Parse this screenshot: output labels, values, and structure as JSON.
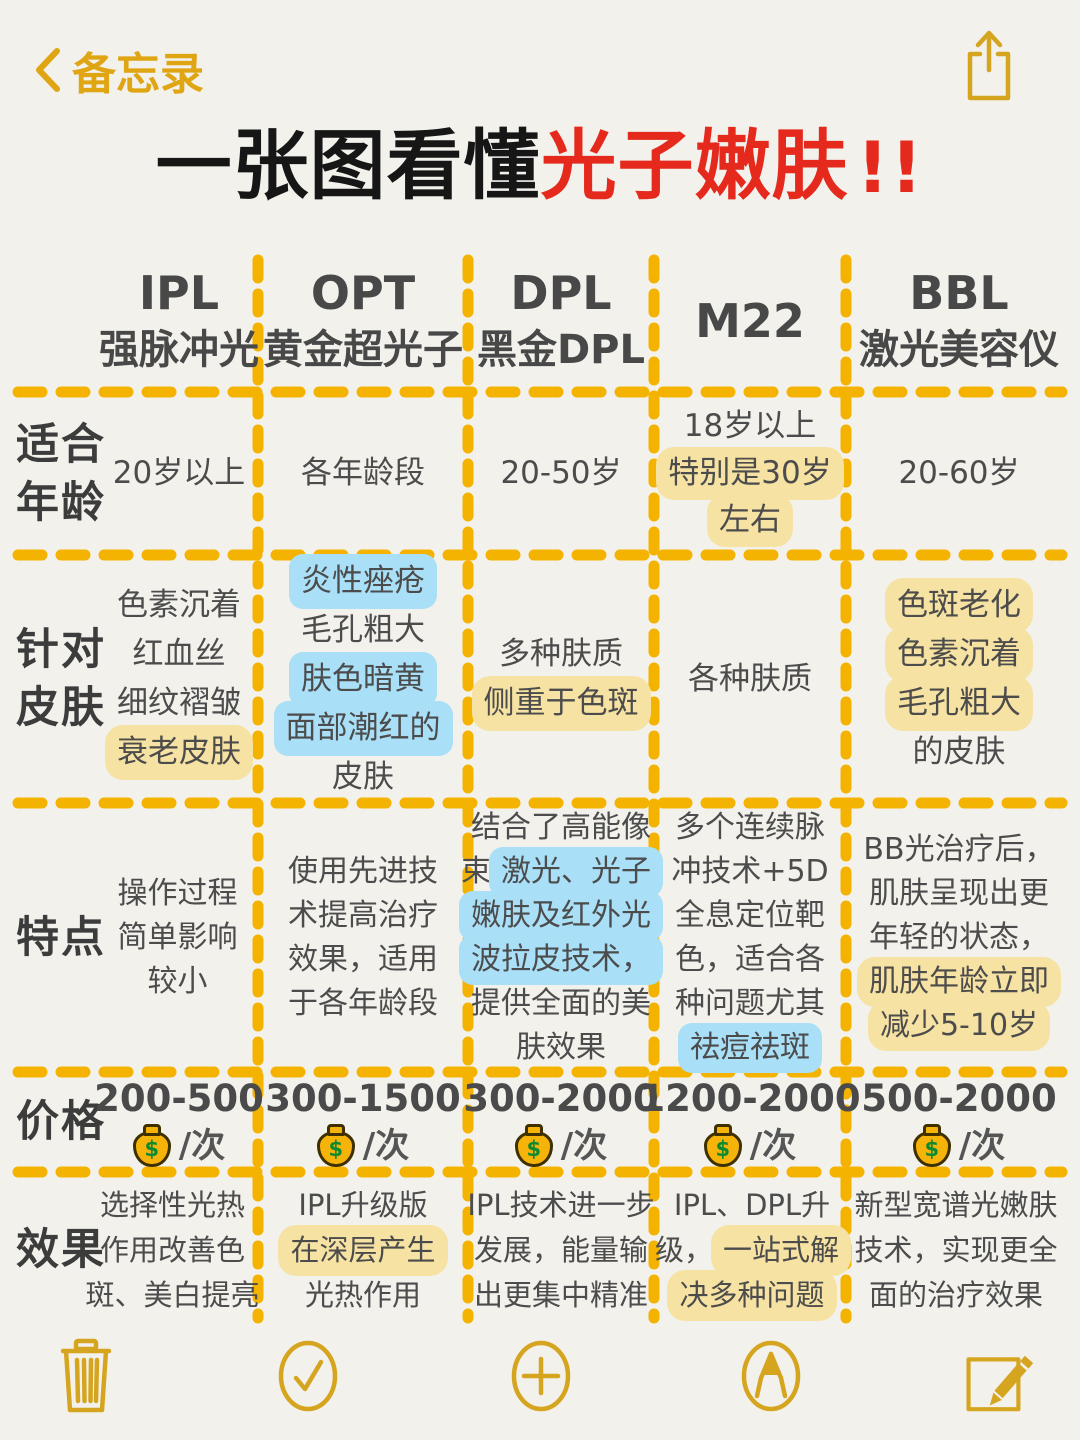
{
  "nav": {
    "back_label": "备忘录"
  },
  "title": {
    "prefix": "一张图看懂",
    "highlight": "光子嫩肤",
    "marks": "!!"
  },
  "colors": {
    "gold": "#dfa513",
    "dash": "#f5b301",
    "highlight_yellow": "#f6e2a2",
    "highlight_blue": "#a9dff7",
    "title_red": "#e52a1d",
    "text": "#4a4a4a",
    "background": "#f2f1ec"
  },
  "table": {
    "headers": [
      {
        "top": "IPL",
        "bottom": "强脉冲光"
      },
      {
        "top": "OPT",
        "bottom": "黄金超光子"
      },
      {
        "top": "DPL",
        "bottom": "黑金DPL"
      },
      {
        "top": "M22",
        "bottom": ""
      },
      {
        "top": "BBL",
        "bottom": "激光美容仪"
      }
    ],
    "rows": [
      {
        "label": [
          "适合",
          "年龄"
        ],
        "cells": {
          "ipl": [
            [
              {
                "t": "20岁以上"
              }
            ]
          ],
          "opt": [
            [
              {
                "t": "各年龄段"
              }
            ]
          ],
          "dpl": [
            [
              {
                "t": "20-50岁"
              }
            ]
          ],
          "m22": [
            [
              {
                "t": "18岁以上"
              }
            ],
            [
              {
                "t": "特别是30岁",
                "hl": "y"
              }
            ],
            [
              {
                "t": "左右",
                "hl": "y"
              }
            ]
          ],
          "bbl": [
            [
              {
                "t": "20-60岁"
              }
            ]
          ]
        }
      },
      {
        "label": [
          "针对",
          "皮肤"
        ],
        "cells": {
          "ipl": [
            [
              {
                "t": "色素沉着"
              }
            ],
            [
              {
                "t": "红血丝"
              }
            ],
            [
              {
                "t": "细纹褶皱"
              }
            ],
            [
              {
                "t": "衰老皮肤",
                "hl": "y"
              }
            ]
          ],
          "opt": [
            [
              {
                "t": "炎性痤疮",
                "hl": "b"
              }
            ],
            [
              {
                "t": "毛孔粗大"
              }
            ],
            [
              {
                "t": "肤色暗黄",
                "hl": "b"
              }
            ],
            [
              {
                "t": "面部潮红的",
                "hl": "b"
              }
            ],
            [
              {
                "t": "皮肤"
              }
            ]
          ],
          "dpl": [
            [
              {
                "t": "多种肤质"
              }
            ],
            [
              {
                "t": "侧重于色斑",
                "hl": "y"
              }
            ]
          ],
          "m22": [
            [
              {
                "t": "各种肤质"
              }
            ]
          ],
          "bbl": [
            [
              {
                "t": "色斑老化",
                "hl": "y"
              }
            ],
            [
              {
                "t": "色素沉着",
                "hl": "y"
              }
            ],
            [
              {
                "t": "毛孔粗大",
                "hl": "y"
              }
            ],
            [
              {
                "t": "的皮肤"
              }
            ]
          ]
        }
      },
      {
        "label": [
          "特点"
        ],
        "cells": {
          "ipl": [
            [
              {
                "t": "操作过程"
              }
            ],
            [
              {
                "t": "简单影响"
              }
            ],
            [
              {
                "t": "较小"
              }
            ]
          ],
          "opt": [
            [
              {
                "t": "使用先进技"
              }
            ],
            [
              {
                "t": "术提高治疗"
              }
            ],
            [
              {
                "t": "效果，适用"
              }
            ],
            [
              {
                "t": "于各年龄段"
              }
            ]
          ],
          "dpl": [
            [
              {
                "t": "结合了高能像"
              }
            ],
            [
              {
                "t": "束"
              },
              {
                "t": "激光、光子",
                "hl": "b"
              }
            ],
            [
              {
                "t": "嫩肤及红外光",
                "hl": "b"
              }
            ],
            [
              {
                "t": "波拉皮技术，",
                "hl": "b"
              }
            ],
            [
              {
                "t": "提供全面的美"
              }
            ],
            [
              {
                "t": "肤效果"
              }
            ]
          ],
          "m22": [
            [
              {
                "t": "多个连续脉"
              }
            ],
            [
              {
                "t": "冲技术+5D"
              }
            ],
            [
              {
                "t": "全息定位靶"
              }
            ],
            [
              {
                "t": "色，适合各"
              }
            ],
            [
              {
                "t": "种问题尤其"
              }
            ],
            [
              {
                "t": "祛痘祛斑",
                "hl": "b"
              }
            ]
          ],
          "bbl": [
            [
              {
                "t": "BB光治疗后，"
              }
            ],
            [
              {
                "t": "肌肤呈现出更"
              }
            ],
            [
              {
                "t": "年轻的状态，"
              }
            ],
            [
              {
                "t": "肌肤年龄立即",
                "hl": "y"
              }
            ],
            [
              {
                "t": "减少5-10岁",
                "hl": "y"
              }
            ]
          ]
        }
      },
      {
        "label": [
          "价格"
        ],
        "cells": {
          "ipl": [
            [
              {
                "t": "200-500"
              }
            ],
            [
              {
                "icon": "money-bag-icon"
              },
              {
                "t": "/次"
              }
            ]
          ],
          "opt": [
            [
              {
                "t": "300-1500"
              }
            ],
            [
              {
                "icon": "money-bag-icon"
              },
              {
                "t": "/次"
              }
            ]
          ],
          "dpl": [
            [
              {
                "t": "300-2000"
              }
            ],
            [
              {
                "icon": "money-bag-icon"
              },
              {
                "t": "/次"
              }
            ]
          ],
          "m22": [
            [
              {
                "t": "1200-2000"
              }
            ],
            [
              {
                "icon": "money-bag-icon"
              },
              {
                "t": "/次"
              }
            ]
          ],
          "bbl": [
            [
              {
                "t": "500-2000"
              }
            ],
            [
              {
                "icon": "money-bag-icon"
              },
              {
                "t": "/次"
              }
            ]
          ]
        }
      },
      {
        "label": [
          "效果"
        ],
        "cells": {
          "ipl": [
            [
              {
                "t": "选择性光热"
              }
            ],
            [
              {
                "t": "作用改善色"
              }
            ],
            [
              {
                "t": "斑、美白提亮"
              }
            ]
          ],
          "opt": [
            [
              {
                "t": "IPL升级版"
              }
            ],
            [
              {
                "t": "在深层产生",
                "hl": "y"
              }
            ],
            [
              {
                "t": "光热作用"
              }
            ]
          ],
          "dpl": [
            [
              {
                "t": "IPL技术进一步"
              }
            ],
            [
              {
                "t": "发展，能量输"
              }
            ],
            [
              {
                "t": "出更集中精准"
              }
            ]
          ],
          "m22": [
            [
              {
                "t": "IPL、DPL升"
              }
            ],
            [
              {
                "t": "级，"
              },
              {
                "t": "一站式解",
                "hl": "y"
              }
            ],
            [
              {
                "t": "决多种问题",
                "hl": "y"
              }
            ]
          ],
          "bbl": [
            [
              {
                "t": "新型宽谱光嫩肤"
              }
            ],
            [
              {
                "t": "技术，实现更全"
              }
            ],
            [
              {
                "t": "面的治疗效果"
              }
            ]
          ]
        }
      }
    ]
  },
  "toolbar": {
    "icons": [
      "trash-icon",
      "check-circle-icon",
      "plus-circle-icon",
      "marker-pen-icon",
      "compose-icon"
    ]
  }
}
